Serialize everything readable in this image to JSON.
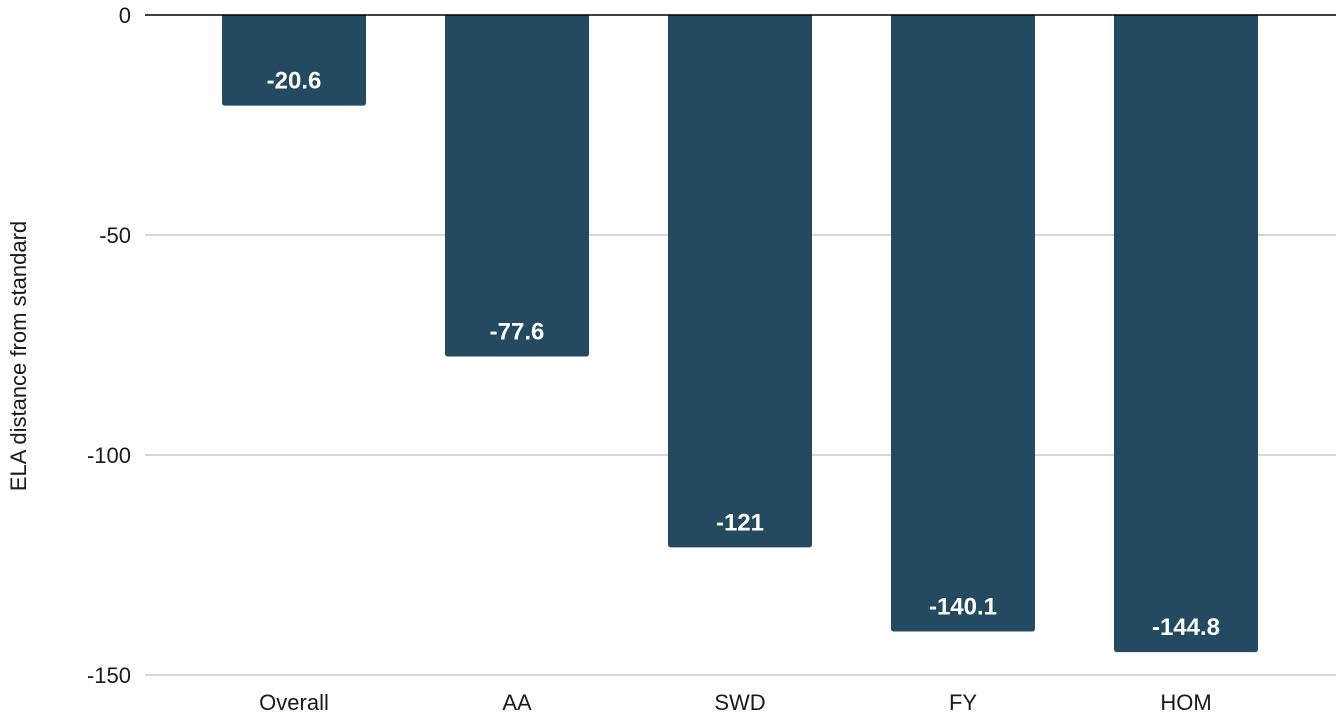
{
  "chart_data": {
    "type": "bar",
    "title": "",
    "xlabel": "",
    "ylabel": "ELA distance from standard",
    "categories": [
      "Overall",
      "AA",
      "SWD",
      "FY",
      "HOM"
    ],
    "values": [
      -20.6,
      -77.6,
      -121,
      -140.1,
      -144.8
    ],
    "data_labels": [
      "-20.6",
      "-77.6",
      "-121",
      "-140.1",
      "-144.8"
    ],
    "ylim": [
      -150,
      0
    ],
    "yticks": [
      0,
      -50,
      -100,
      -150
    ],
    "ytick_labels": [
      "0",
      "-50",
      "-100",
      "-150"
    ],
    "grid": true,
    "legend": "none",
    "bar_color": "#234a61",
    "grid_color": "#cccccc",
    "axis_color": "#000000"
  }
}
